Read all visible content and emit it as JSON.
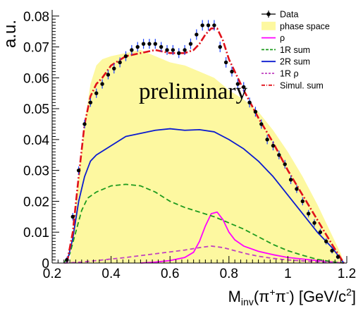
{
  "chart_data": {
    "type": "line",
    "ylabel": "a.u.",
    "xlabel_parts": [
      "M",
      "inv",
      "(π",
      "+",
      "π",
      "-",
      ") [GeV/c",
      "2",
      "]"
    ],
    "annotation": "preliminary",
    "xlim": [
      0.2,
      1.2
    ],
    "ylim": [
      0,
      0.082
    ],
    "grid": false,
    "legend_position": "top-right",
    "x_ticks": [
      0.2,
      0.4,
      0.6,
      0.8,
      1.0,
      1.2
    ],
    "x_tick_labels": [
      "0.2",
      "0.4",
      "0.6",
      "0.8",
      "1",
      "1.2"
    ],
    "y_ticks": [
      0,
      0.01,
      0.02,
      0.03,
      0.04,
      0.05,
      0.06,
      0.07,
      0.08
    ],
    "y_tick_labels": [
      "0",
      "0.01",
      "0.02",
      "0.03",
      "0.04",
      "0.05",
      "0.06",
      "0.07",
      "0.08"
    ],
    "series": [
      {
        "name": "Data",
        "kind": "points",
        "color": "#000000",
        "x": [
          0.25,
          0.27,
          0.29,
          0.31,
          0.33,
          0.35,
          0.37,
          0.39,
          0.41,
          0.43,
          0.45,
          0.47,
          0.49,
          0.51,
          0.53,
          0.55,
          0.57,
          0.59,
          0.61,
          0.63,
          0.65,
          0.67,
          0.69,
          0.71,
          0.73,
          0.75,
          0.77,
          0.79,
          0.81,
          0.83,
          0.85,
          0.87,
          0.89,
          0.91,
          0.93,
          0.95,
          0.97,
          0.99,
          1.01,
          1.03,
          1.05,
          1.07,
          1.09,
          1.11,
          1.13,
          1.15,
          1.17
        ],
        "y": [
          0.001,
          0.015,
          0.03,
          0.045,
          0.052,
          0.055,
          0.058,
          0.061,
          0.063,
          0.065,
          0.067,
          0.069,
          0.07,
          0.071,
          0.071,
          0.071,
          0.07,
          0.069,
          0.069,
          0.068,
          0.069,
          0.071,
          0.074,
          0.077,
          0.077,
          0.077,
          0.07,
          0.065,
          0.062,
          0.058,
          0.057,
          0.052,
          0.049,
          0.045,
          0.04,
          0.038,
          0.035,
          0.032,
          0.027,
          0.024,
          0.02,
          0.016,
          0.013,
          0.01,
          0.007,
          0.004,
          0.002
        ],
        "err": [
          0.001,
          0.0012,
          0.0013,
          0.0014,
          0.0014,
          0.0015,
          0.0015,
          0.0015,
          0.0016,
          0.0016,
          0.0016,
          0.0016,
          0.0016,
          0.0016,
          0.0016,
          0.0016,
          0.0016,
          0.0016,
          0.0016,
          0.0016,
          0.0016,
          0.0017,
          0.0017,
          0.0017,
          0.0017,
          0.0017,
          0.0017,
          0.0017,
          0.0016,
          0.0016,
          0.0016,
          0.0016,
          0.0016,
          0.0015,
          0.0015,
          0.0015,
          0.0014,
          0.0014,
          0.0014,
          0.0013,
          0.0013,
          0.0012,
          0.0012,
          0.0011,
          0.001,
          0.0009,
          0.0008
        ]
      },
      {
        "name": "phase space",
        "kind": "fill",
        "color": "#fdf8a0",
        "x": [
          0.26,
          0.27,
          0.29,
          0.31,
          0.33,
          0.35,
          0.37,
          0.4,
          0.45,
          0.5,
          0.55,
          0.6,
          0.65,
          0.7,
          0.75,
          0.8,
          0.85,
          0.9,
          0.95,
          1.0,
          1.05,
          1.1,
          1.15,
          1.18,
          1.19
        ],
        "y": [
          0.0,
          0.01,
          0.028,
          0.045,
          0.058,
          0.064,
          0.066,
          0.067,
          0.068,
          0.069,
          0.067,
          0.065,
          0.064,
          0.062,
          0.06,
          0.056,
          0.053,
          0.049,
          0.043,
          0.036,
          0.028,
          0.019,
          0.009,
          0.003,
          0.0
        ]
      },
      {
        "name": "ρ",
        "kind": "line",
        "color": "#ff00ff",
        "dash": "",
        "x": [
          0.5,
          0.55,
          0.6,
          0.65,
          0.68,
          0.7,
          0.72,
          0.74,
          0.76,
          0.78,
          0.8,
          0.82,
          0.85,
          0.9,
          0.95,
          1.0,
          1.1,
          1.19
        ],
        "y": [
          0.0,
          0.0003,
          0.0008,
          0.0018,
          0.0035,
          0.007,
          0.012,
          0.016,
          0.0165,
          0.014,
          0.01,
          0.0075,
          0.0055,
          0.0038,
          0.0027,
          0.0018,
          0.0008,
          0.0
        ]
      },
      {
        "name": "1R sum",
        "kind": "line",
        "color": "#1e9b1e",
        "dash": "7,4",
        "x": [
          0.24,
          0.26,
          0.28,
          0.3,
          0.32,
          0.35,
          0.4,
          0.45,
          0.5,
          0.55,
          0.6,
          0.65,
          0.7,
          0.75,
          0.8,
          0.85,
          0.9,
          0.95,
          1.0,
          1.05,
          1.1,
          1.15,
          1.19
        ],
        "y": [
          0.0,
          0.003,
          0.01,
          0.017,
          0.021,
          0.023,
          0.025,
          0.0255,
          0.025,
          0.023,
          0.02,
          0.018,
          0.0165,
          0.015,
          0.013,
          0.011,
          0.0085,
          0.006,
          0.004,
          0.0025,
          0.0012,
          0.0004,
          0.0
        ]
      },
      {
        "name": "2R sum",
        "kind": "line",
        "color": "#0b1bcf",
        "dash": "",
        "x": [
          0.25,
          0.27,
          0.29,
          0.31,
          0.33,
          0.35,
          0.4,
          0.45,
          0.5,
          0.55,
          0.6,
          0.65,
          0.7,
          0.75,
          0.8,
          0.85,
          0.9,
          0.95,
          1.0,
          1.05,
          1.1,
          1.15,
          1.19
        ],
        "y": [
          0.0,
          0.008,
          0.02,
          0.028,
          0.033,
          0.035,
          0.038,
          0.041,
          0.042,
          0.043,
          0.0435,
          0.043,
          0.0432,
          0.0425,
          0.04,
          0.037,
          0.033,
          0.028,
          0.022,
          0.016,
          0.01,
          0.005,
          0.0
        ]
      },
      {
        "name": "1R ρ",
        "kind": "line",
        "color": "#c040c0",
        "dash": "6,4",
        "x": [
          0.24,
          0.3,
          0.35,
          0.4,
          0.45,
          0.5,
          0.55,
          0.6,
          0.65,
          0.7,
          0.74,
          0.78,
          0.82,
          0.86,
          0.9,
          0.95,
          1.0,
          1.1,
          1.19
        ],
        "y": [
          0.0,
          0.0003,
          0.0008,
          0.0013,
          0.0018,
          0.0024,
          0.003,
          0.0036,
          0.0042,
          0.005,
          0.0055,
          0.005,
          0.004,
          0.003,
          0.0022,
          0.0015,
          0.001,
          0.0004,
          0.0
        ]
      },
      {
        "name": "Simul. sum",
        "kind": "line",
        "color": "#e0101a",
        "dash": "10,3,2,3",
        "x": [
          0.25,
          0.27,
          0.29,
          0.31,
          0.33,
          0.35,
          0.37,
          0.4,
          0.45,
          0.5,
          0.55,
          0.6,
          0.65,
          0.68,
          0.7,
          0.72,
          0.74,
          0.76,
          0.78,
          0.8,
          0.85,
          0.9,
          0.95,
          1.0,
          1.05,
          1.1,
          1.15,
          1.19
        ],
        "y": [
          0.0,
          0.01,
          0.028,
          0.045,
          0.054,
          0.058,
          0.06,
          0.064,
          0.067,
          0.068,
          0.069,
          0.068,
          0.068,
          0.069,
          0.071,
          0.074,
          0.076,
          0.076,
          0.072,
          0.066,
          0.056,
          0.047,
          0.039,
          0.03,
          0.022,
          0.014,
          0.006,
          0.0
        ]
      }
    ]
  }
}
